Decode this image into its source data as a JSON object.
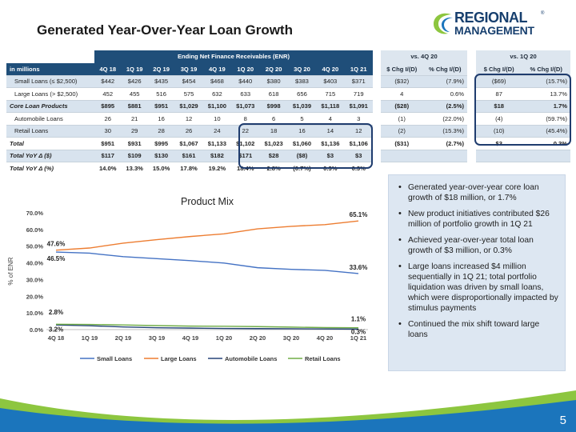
{
  "title": "Generated Year-Over-Year Loan Growth",
  "logo": {
    "line1": "REGIONAL",
    "line2": "MANAGEMENT",
    "reg": "®"
  },
  "table": {
    "group_header": "Ending Net Finance Receivables (ENR)",
    "units": "in millions",
    "periods": [
      "4Q 18",
      "1Q 19",
      "2Q 19",
      "3Q 19",
      "4Q 19",
      "1Q 20",
      "2Q 20",
      "3Q 20",
      "4Q 20",
      "1Q 21"
    ],
    "vs_headers": [
      "vs. 4Q 20",
      "vs. 1Q 20"
    ],
    "chg_headers": [
      "$ Chg I/(D)",
      "% Chg I/(D)",
      "$ Chg I/(D)",
      "% Chg I/(D)"
    ],
    "rows": [
      {
        "label": "Small Loans (≤ $2,500)",
        "vals": [
          "$442",
          "$426",
          "$435",
          "$454",
          "$468",
          "$440",
          "$380",
          "$383",
          "$403",
          "$371"
        ],
        "chg": [
          "($32)",
          "(7.9%)",
          "($69)",
          "(15.7%)"
        ],
        "style": "indent"
      },
      {
        "label": "Large Loans (> $2,500)",
        "vals": [
          "452",
          "455",
          "516",
          "575",
          "632",
          "633",
          "618",
          "656",
          "715",
          "719"
        ],
        "chg": [
          "4",
          "0.6%",
          "87",
          "13.7%"
        ],
        "style": "indent"
      },
      {
        "label": "Core Loan Products",
        "vals": [
          "$895",
          "$881",
          "$951",
          "$1,029",
          "$1,100",
          "$1,073",
          "$998",
          "$1,039",
          "$1,118",
          "$1,091"
        ],
        "chg": [
          "($28)",
          "(2.5%)",
          "$18",
          "1.7%"
        ],
        "style": "bold"
      },
      {
        "label": "Automobile Loans",
        "vals": [
          "26",
          "21",
          "16",
          "12",
          "10",
          "8",
          "6",
          "5",
          "4",
          "3"
        ],
        "chg": [
          "(1)",
          "(22.0%)",
          "(4)",
          "(59.7%)"
        ],
        "style": "indent"
      },
      {
        "label": "Retail Loans",
        "vals": [
          "30",
          "29",
          "28",
          "26",
          "24",
          "22",
          "18",
          "16",
          "14",
          "12"
        ],
        "chg": [
          "(2)",
          "(15.3%)",
          "(10)",
          "(45.4%)"
        ],
        "style": "indent"
      },
      {
        "label": "Total",
        "vals": [
          "$951",
          "$931",
          "$995",
          "$1,067",
          "$1,133",
          "$1,102",
          "$1,023",
          "$1,060",
          "$1,136",
          "$1,106"
        ],
        "chg": [
          "($31)",
          "(2.7%)",
          "$3",
          "0.3%"
        ],
        "style": "bold"
      },
      {
        "label": "Total YoY Δ ($)",
        "vals": [
          "$117",
          "$109",
          "$130",
          "$161",
          "$182",
          "$171",
          "$28",
          "($8)",
          "$3",
          "$3"
        ],
        "chg": [
          "",
          "",
          "",
          ""
        ],
        "style": "bold"
      },
      {
        "label": "Total YoY Δ (%)",
        "vals": [
          "14.0%",
          "13.3%",
          "15.0%",
          "17.8%",
          "19.2%",
          "18.4%",
          "2.8%",
          "(0.7%)",
          "0.3%",
          "0.3%"
        ],
        "chg": [
          "",
          "",
          "",
          ""
        ],
        "style": "bold"
      }
    ]
  },
  "bullets": [
    "Generated year-over-year core loan growth of $18 million, or 1.7%",
    "New product initiatives contributed $26 million of portfolio growth in 1Q 21",
    "Achieved year-over-year total loan growth of $3 million, or 0.3%",
    "Large loans increased $4 million sequentially in 1Q 21; total portfolio liquidation was driven by small loans, which were disproportionally impacted by stimulus payments",
    "Continued the mix shift toward large loans"
  ],
  "chart_data": {
    "type": "line",
    "title": "Product Mix",
    "xlabel": "",
    "ylabel": "% of ENR",
    "categories": [
      "4Q 18",
      "1Q 19",
      "2Q 19",
      "3Q 19",
      "4Q 19",
      "1Q 20",
      "2Q 20",
      "3Q 20",
      "4Q 20",
      "1Q 21"
    ],
    "ylim": [
      0,
      70
    ],
    "yticks": [
      "0.0%",
      "10.0%",
      "20.0%",
      "30.0%",
      "40.0%",
      "50.0%",
      "60.0%",
      "70.0%"
    ],
    "series": [
      {
        "name": "Small Loans",
        "color": "#4472c4",
        "values": [
          46.5,
          45.8,
          43.7,
          42.5,
          41.3,
          39.9,
          37.1,
          36.1,
          35.5,
          33.6
        ]
      },
      {
        "name": "Large Loans",
        "color": "#ed7d31",
        "values": [
          47.6,
          48.9,
          51.8,
          53.9,
          55.8,
          57.4,
          60.4,
          61.9,
          62.9,
          65.1
        ]
      },
      {
        "name": "Automobile Loans",
        "color": "#264478",
        "values": [
          2.8,
          2.3,
          1.6,
          1.1,
          0.9,
          0.7,
          0.6,
          0.5,
          0.4,
          0.3
        ]
      },
      {
        "name": "Retail Loans",
        "color": "#70ad47",
        "values": [
          3.2,
          3.1,
          2.8,
          2.4,
          2.1,
          2.0,
          1.8,
          1.5,
          1.2,
          1.1
        ]
      }
    ],
    "annotations": [
      {
        "series": 1,
        "index": 0,
        "text": "47.6%"
      },
      {
        "series": 0,
        "index": 0,
        "text": "46.5%"
      },
      {
        "series": 1,
        "index": 9,
        "text": "65.1%"
      },
      {
        "series": 0,
        "index": 9,
        "text": "33.6%"
      },
      {
        "series": 2,
        "index": 0,
        "text": "2.8%"
      },
      {
        "series": 3,
        "index": 0,
        "text": "3.2%"
      },
      {
        "series": 3,
        "index": 9,
        "text": "1.1%"
      },
      {
        "series": 2,
        "index": 9,
        "text": "0.3%"
      }
    ],
    "legend": "bottom"
  },
  "footer": {
    "page": "5"
  },
  "colors": {
    "navy": "#1f4e79",
    "light_blue": "#dde6ef",
    "green": "#8dc63f",
    "blue_swoosh": "#1b75bc"
  }
}
